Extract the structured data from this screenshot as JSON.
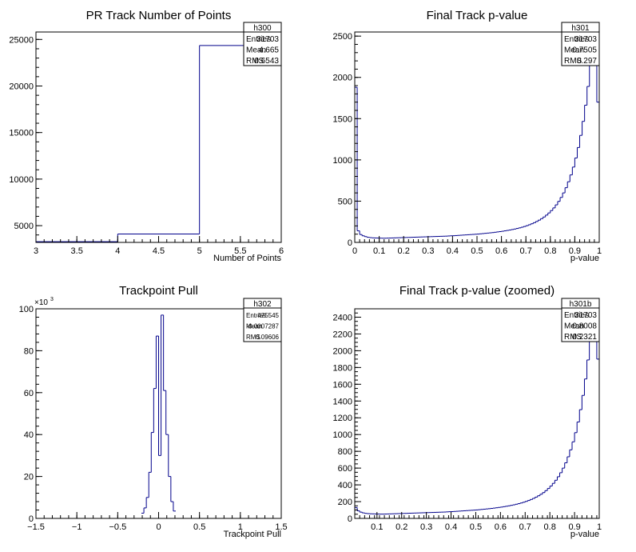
{
  "colors": {
    "line": "#00008b",
    "axis": "#000000",
    "background": "#ffffff"
  },
  "chart_data": [
    {
      "id": "h300",
      "type": "bar",
      "title": "PR Track Number of Points",
      "xlabel": "Number of Points",
      "ylabel": "",
      "xlim": [
        3,
        6
      ],
      "ylim": [
        3200,
        25800
      ],
      "xticks": [
        "3",
        "3.5",
        "4",
        "4.5",
        "5",
        "5.5",
        "6"
      ],
      "yticks": [
        "5000",
        "10000",
        "15000",
        "20000",
        "25000"
      ],
      "grid": false,
      "stats": {
        "name": "h300",
        "rows": [
          {
            "label": "Entries",
            "value": "31703"
          },
          {
            "label": "Mean",
            "value": "4.665"
          },
          {
            "label": "RMS",
            "value": "0.6543"
          }
        ]
      },
      "bin_width": 1,
      "x": [
        3,
        4,
        5
      ],
      "values": [
        3280,
        4100,
        24350
      ]
    },
    {
      "id": "h301",
      "type": "bar",
      "title": "Final Track p-value",
      "xlabel": "p-value",
      "ylabel": "",
      "xlim": [
        0,
        1
      ],
      "ylim": [
        0,
        2550
      ],
      "xticks": [
        "0",
        "0.1",
        "0.2",
        "0.3",
        "0.4",
        "0.5",
        "0.6",
        "0.7",
        "0.8",
        "0.9",
        "1"
      ],
      "yticks": [
        "0",
        "500",
        "1000",
        "1500",
        "2000",
        "2500"
      ],
      "grid": false,
      "stats": {
        "name": "h301",
        "rows": [
          {
            "label": "Entries",
            "value": "31703"
          },
          {
            "label": "Mean",
            "value": "0.7505"
          },
          {
            "label": "RMS",
            "value": "0.297"
          }
        ]
      },
      "bin_width": 0.01,
      "x": [
        0,
        0.01,
        0.02,
        0.03,
        0.04,
        0.05,
        0.06,
        0.07,
        0.08,
        0.09,
        0.1,
        0.11,
        0.12,
        0.13,
        0.14,
        0.15,
        0.16,
        0.17,
        0.18,
        0.19,
        0.2,
        0.21,
        0.22,
        0.23,
        0.24,
        0.25,
        0.26,
        0.27,
        0.28,
        0.29,
        0.3,
        0.31,
        0.32,
        0.33,
        0.34,
        0.35,
        0.36,
        0.37,
        0.38,
        0.39,
        0.4,
        0.41,
        0.42,
        0.43,
        0.44,
        0.45,
        0.46,
        0.47,
        0.48,
        0.49,
        0.5,
        0.51,
        0.52,
        0.53,
        0.54,
        0.55,
        0.56,
        0.57,
        0.58,
        0.59,
        0.6,
        0.61,
        0.62,
        0.63,
        0.64,
        0.65,
        0.66,
        0.67,
        0.68,
        0.69,
        0.7,
        0.71,
        0.72,
        0.73,
        0.74,
        0.75,
        0.76,
        0.77,
        0.78,
        0.79,
        0.8,
        0.81,
        0.82,
        0.83,
        0.84,
        0.85,
        0.86,
        0.87,
        0.88,
        0.89,
        0.9,
        0.91,
        0.92,
        0.93,
        0.94,
        0.95,
        0.96,
        0.97,
        0.98,
        0.99
      ],
      "values": [
        1880,
        140,
        95,
        80,
        70,
        62,
        58,
        55,
        54,
        53,
        52,
        51,
        51,
        52,
        53,
        54,
        55,
        56,
        57,
        58,
        59,
        60,
        61,
        62,
        63,
        64,
        65,
        66,
        67,
        68,
        69,
        70,
        71,
        72,
        73,
        74,
        75,
        76,
        78,
        80,
        81,
        83,
        85,
        87,
        89,
        91,
        93,
        95,
        97,
        99,
        101,
        104,
        107,
        110,
        113,
        116,
        119,
        123,
        127,
        131,
        135,
        140,
        145,
        150,
        156,
        162,
        169,
        176,
        184,
        193,
        203,
        214,
        226,
        239,
        254,
        270,
        288,
        308,
        331,
        357,
        386,
        418,
        455,
        497,
        545,
        600,
        663,
        735,
        818,
        913,
        1023,
        1150,
        1297,
        1467,
        1663,
        1890,
        2150,
        2550,
        2550,
        1700
      ]
    },
    {
      "id": "h302",
      "type": "bar",
      "title": "Trackpoint Pull",
      "xlabel": "Trackpoint Pull",
      "ylabel": "",
      "y_multiplier": "×10",
      "y_multiplier_exp": "3",
      "xlim": [
        -1.5,
        1.5
      ],
      "ylim": [
        0,
        100
      ],
      "xticks": [
        "−1.5",
        "−1",
        "−0.5",
        "0",
        "0.5",
        "1",
        "1.5"
      ],
      "yticks": [
        "0",
        "20",
        "40",
        "60",
        "80",
        "100"
      ],
      "grid": false,
      "stats": {
        "name": "h302",
        "rows": [
          {
            "label": "Entries",
            "value": "475545"
          },
          {
            "label": "Mean",
            "value": "-0.0007287"
          },
          {
            "label": "RMS",
            "value": "0.09606"
          }
        ]
      },
      "bin_width": 0.03,
      "x": [
        -0.21,
        -0.18,
        -0.15,
        -0.12,
        -0.09,
        -0.06,
        -0.03,
        0,
        0.03,
        0.06,
        0.09,
        0.12,
        0.15,
        0.18
      ],
      "values": [
        2.5,
        5,
        10,
        22,
        41,
        62,
        87,
        30,
        97,
        61,
        40,
        20,
        8,
        3.5
      ]
    },
    {
      "id": "h301b",
      "type": "bar",
      "title": "Final Track p-value (zoomed)",
      "xlabel": "p-value",
      "ylabel": "",
      "xlim": [
        0.01,
        1
      ],
      "ylim": [
        0,
        2500
      ],
      "xticks": [
        "0.1",
        "0.2",
        "0.3",
        "0.4",
        "0.5",
        "0.6",
        "0.7",
        "0.8",
        "0.9",
        "1"
      ],
      "yticks": [
        "0",
        "200",
        "400",
        "600",
        "800",
        "1000",
        "1200",
        "1400",
        "1600",
        "1800",
        "2000",
        "2200",
        "2400"
      ],
      "grid": false,
      "stats": {
        "name": "h301b",
        "rows": [
          {
            "label": "Entries",
            "value": "31703"
          },
          {
            "label": "Mean",
            "value": "0.8008"
          },
          {
            "label": "RMS",
            "value": "0.2321"
          }
        ]
      },
      "bin_width": 0.01,
      "x": [
        0.01,
        0.02,
        0.03,
        0.04,
        0.05,
        0.06,
        0.07,
        0.08,
        0.09,
        0.1,
        0.11,
        0.12,
        0.13,
        0.14,
        0.15,
        0.16,
        0.17,
        0.18,
        0.19,
        0.2,
        0.21,
        0.22,
        0.23,
        0.24,
        0.25,
        0.26,
        0.27,
        0.28,
        0.29,
        0.3,
        0.31,
        0.32,
        0.33,
        0.34,
        0.35,
        0.36,
        0.37,
        0.38,
        0.39,
        0.4,
        0.41,
        0.42,
        0.43,
        0.44,
        0.45,
        0.46,
        0.47,
        0.48,
        0.49,
        0.5,
        0.51,
        0.52,
        0.53,
        0.54,
        0.55,
        0.56,
        0.57,
        0.58,
        0.59,
        0.6,
        0.61,
        0.62,
        0.63,
        0.64,
        0.65,
        0.66,
        0.67,
        0.68,
        0.69,
        0.7,
        0.71,
        0.72,
        0.73,
        0.74,
        0.75,
        0.76,
        0.77,
        0.78,
        0.79,
        0.8,
        0.81,
        0.82,
        0.83,
        0.84,
        0.85,
        0.86,
        0.87,
        0.88,
        0.89,
        0.9,
        0.91,
        0.92,
        0.93,
        0.94,
        0.95,
        0.96,
        0.97,
        0.98,
        0.99
      ],
      "values": [
        130,
        90,
        75,
        66,
        60,
        57,
        55,
        54,
        53,
        52,
        51,
        51,
        52,
        53,
        54,
        55,
        56,
        57,
        58,
        59,
        60,
        61,
        62,
        63,
        64,
        65,
        66,
        67,
        68,
        69,
        70,
        71,
        72,
        73,
        74,
        75,
        76,
        78,
        80,
        81,
        83,
        85,
        87,
        89,
        91,
        93,
        95,
        97,
        99,
        101,
        104,
        107,
        110,
        113,
        116,
        119,
        123,
        127,
        131,
        135,
        140,
        145,
        150,
        156,
        162,
        169,
        176,
        184,
        193,
        203,
        214,
        226,
        239,
        254,
        270,
        288,
        308,
        331,
        357,
        386,
        418,
        455,
        497,
        545,
        600,
        663,
        735,
        818,
        913,
        1023,
        1150,
        1297,
        1467,
        1663,
        1890,
        2150,
        2500,
        2500,
        1900
      ]
    }
  ]
}
